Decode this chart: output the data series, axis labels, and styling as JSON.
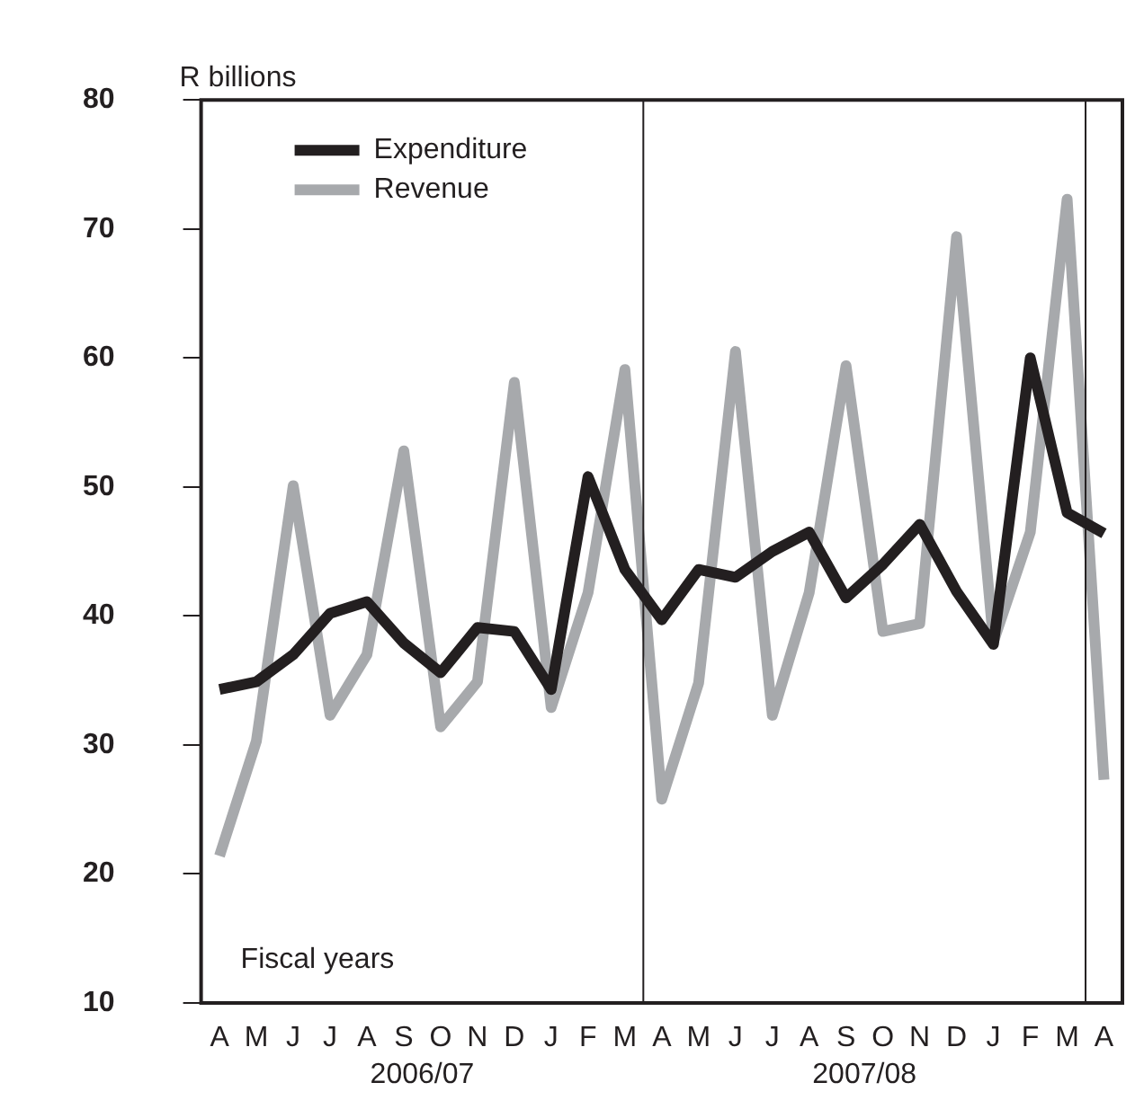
{
  "chart_data": {
    "type": "line",
    "ylabel": "R billions",
    "xlabel": "Fiscal years",
    "categories": [
      "A",
      "M",
      "J",
      "J",
      "A",
      "S",
      "O",
      "N",
      "D",
      "J",
      "F",
      "M",
      "A",
      "M",
      "J",
      "J",
      "A",
      "S",
      "O",
      "N",
      "D",
      "J",
      "F",
      "M",
      "A"
    ],
    "series": [
      {
        "name": "Expenditure",
        "color": "#231f20",
        "values": [
          34.3,
          34.9,
          37,
          40.2,
          41.1,
          37.9,
          35.6,
          39.1,
          38.8,
          34.3,
          50.8,
          43.6,
          39.7,
          43.6,
          43,
          45,
          46.5,
          41.4,
          44,
          47.1,
          41.9,
          37.8,
          60,
          48,
          46.4
        ]
      },
      {
        "name": "Revenue",
        "color": "#a7a9ac",
        "values": [
          21.4,
          30.3,
          50.1,
          32.3,
          37,
          52.8,
          31.4,
          34.9,
          58.1,
          32.9,
          41.8,
          59.1,
          25.8,
          34.8,
          60.5,
          32.3,
          41.8,
          59.4,
          38.8,
          39.4,
          69.4,
          38,
          46.5,
          72.3,
          27.3
        ]
      }
    ],
    "annotations": [
      "2006/07",
      "2007/08"
    ],
    "ylim": [
      10,
      80
    ],
    "yticks": [
      10,
      20,
      30,
      40,
      50,
      60,
      70,
      80
    ],
    "grid": false,
    "legend": "top left",
    "marker": "none",
    "line_style": "solid"
  }
}
